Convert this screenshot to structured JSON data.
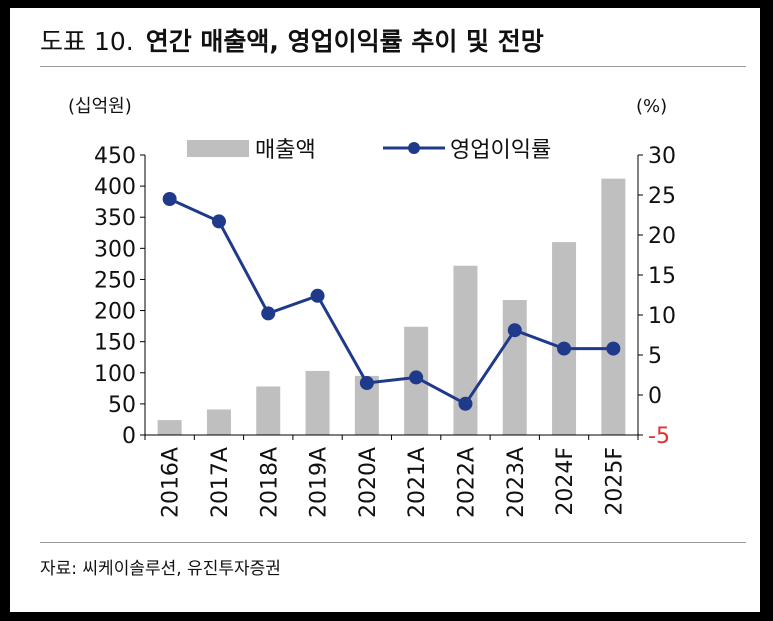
{
  "figure": {
    "label": "도표 10.",
    "title": "연간 매출액, 영업이익률 추이 및 전망",
    "source": "자료: 씨케이솔루션, 유진투자증권"
  },
  "chart_data": {
    "type": "bar+line",
    "categories": [
      "2016A",
      "2017A",
      "2018A",
      "2019A",
      "2020A",
      "2021A",
      "2022A",
      "2023A",
      "2024F",
      "2025F"
    ],
    "y_left": {
      "unit_label": "(십억원)",
      "range": [
        0,
        450
      ],
      "ticks": [
        0,
        50,
        100,
        150,
        200,
        250,
        300,
        350,
        400,
        450
      ]
    },
    "y_right": {
      "unit_label": "(%)",
      "range": [
        -5,
        30
      ],
      "ticks": [
        -5,
        0,
        5,
        10,
        15,
        20,
        25,
        30
      ],
      "negative_tick_color": "#e03030"
    },
    "series": [
      {
        "name": "매출액",
        "kind": "bar",
        "axis": "left",
        "color": "#bfbfbf",
        "values": [
          24,
          41,
          78,
          103,
          95,
          174,
          272,
          217,
          310,
          412
        ]
      },
      {
        "name": "영업이익률",
        "kind": "line",
        "axis": "right",
        "color": "#1f3a8a",
        "values": [
          24.5,
          21.7,
          10.2,
          12.4,
          1.5,
          2.2,
          -1.1,
          8.1,
          5.8,
          5.8
        ]
      }
    ],
    "legend_position": "top",
    "grid": false
  }
}
